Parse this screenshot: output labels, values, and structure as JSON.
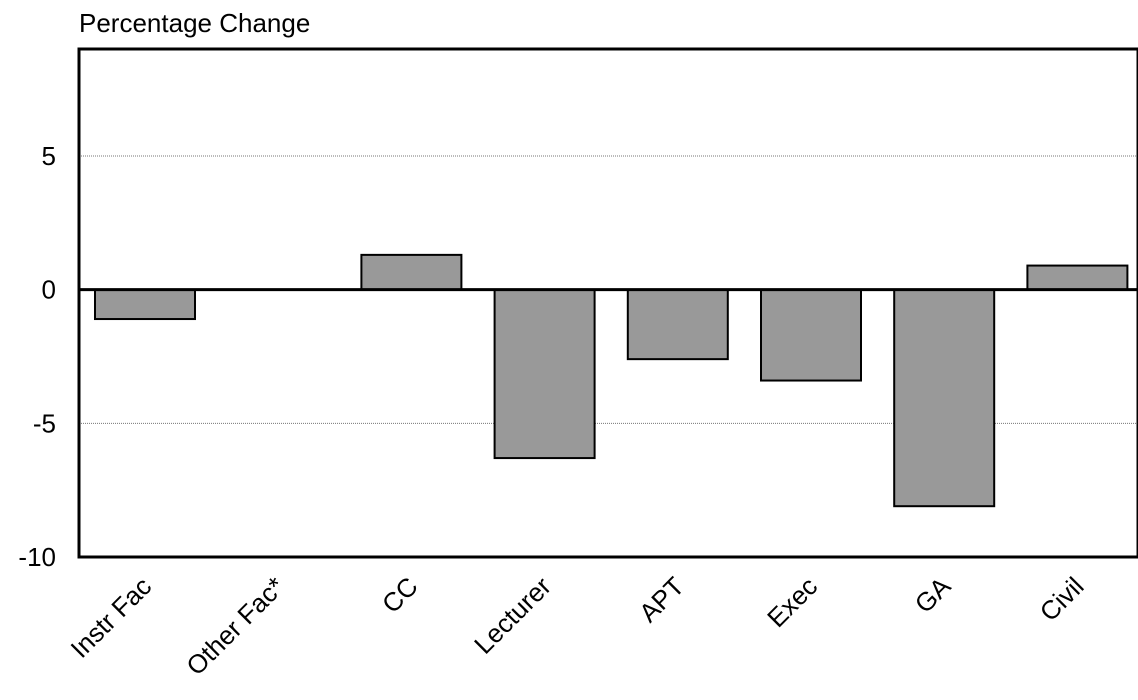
{
  "chart_data": {
    "type": "bar",
    "ylabel": "Percentage Change",
    "categories": [
      "Instr Fac",
      "Other Fac*",
      "CC",
      "Lecturer",
      "APT",
      "Exec",
      "GA",
      "Civil"
    ],
    "values": [
      -1.1,
      0,
      1.3,
      -6.3,
      -2.6,
      -3.4,
      -8.1,
      0.9
    ],
    "ylim": [
      -10,
      9
    ],
    "yticks": [
      -10,
      -5,
      0,
      5
    ],
    "gridlines": [
      -5,
      5
    ],
    "bar_color": "#999999",
    "bar_stroke": "#000000"
  }
}
